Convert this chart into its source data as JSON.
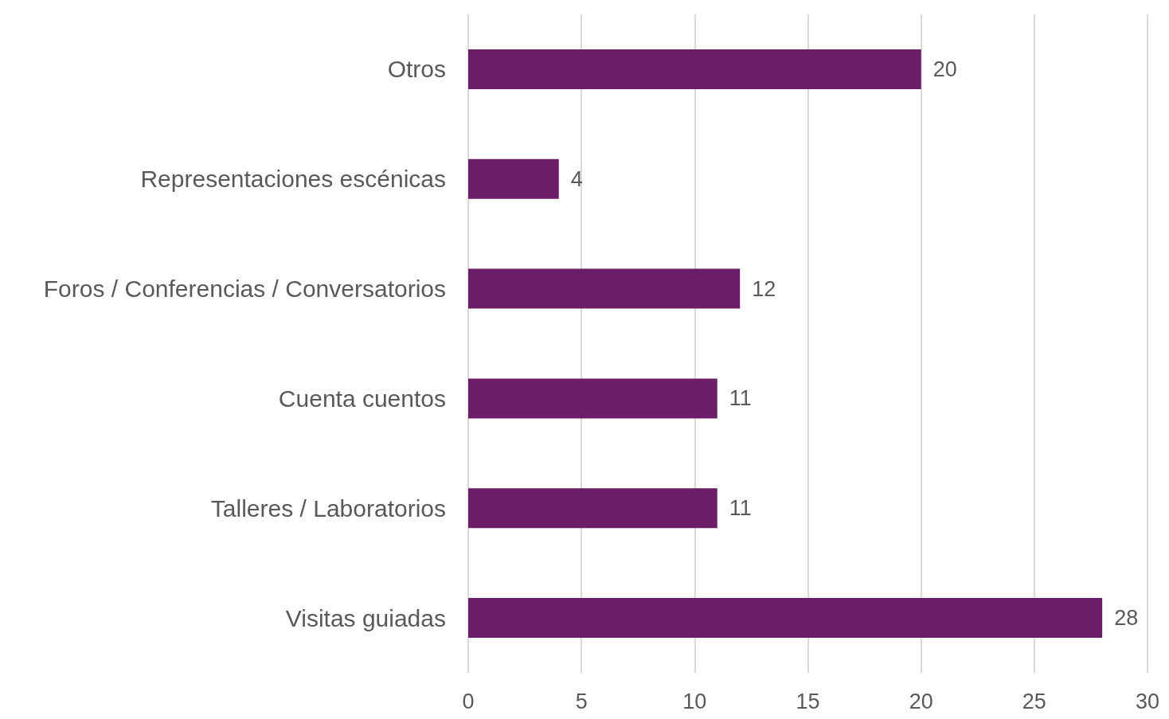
{
  "chart_data": {
    "type": "bar",
    "orientation": "horizontal",
    "categories": [
      "Otros",
      "Representaciones escénicas",
      "Foros / Conferencias / Conversatorios",
      "Cuenta cuentos",
      "Talleres / Laboratorios",
      "Visitas guiadas"
    ],
    "values": [
      20,
      4,
      12,
      11,
      11,
      28
    ],
    "color": "#6c1d67",
    "xlim": [
      0,
      30
    ],
    "xticks": [
      0,
      5,
      10,
      15,
      20,
      25,
      30
    ],
    "grid": "x",
    "data_labels": true
  }
}
